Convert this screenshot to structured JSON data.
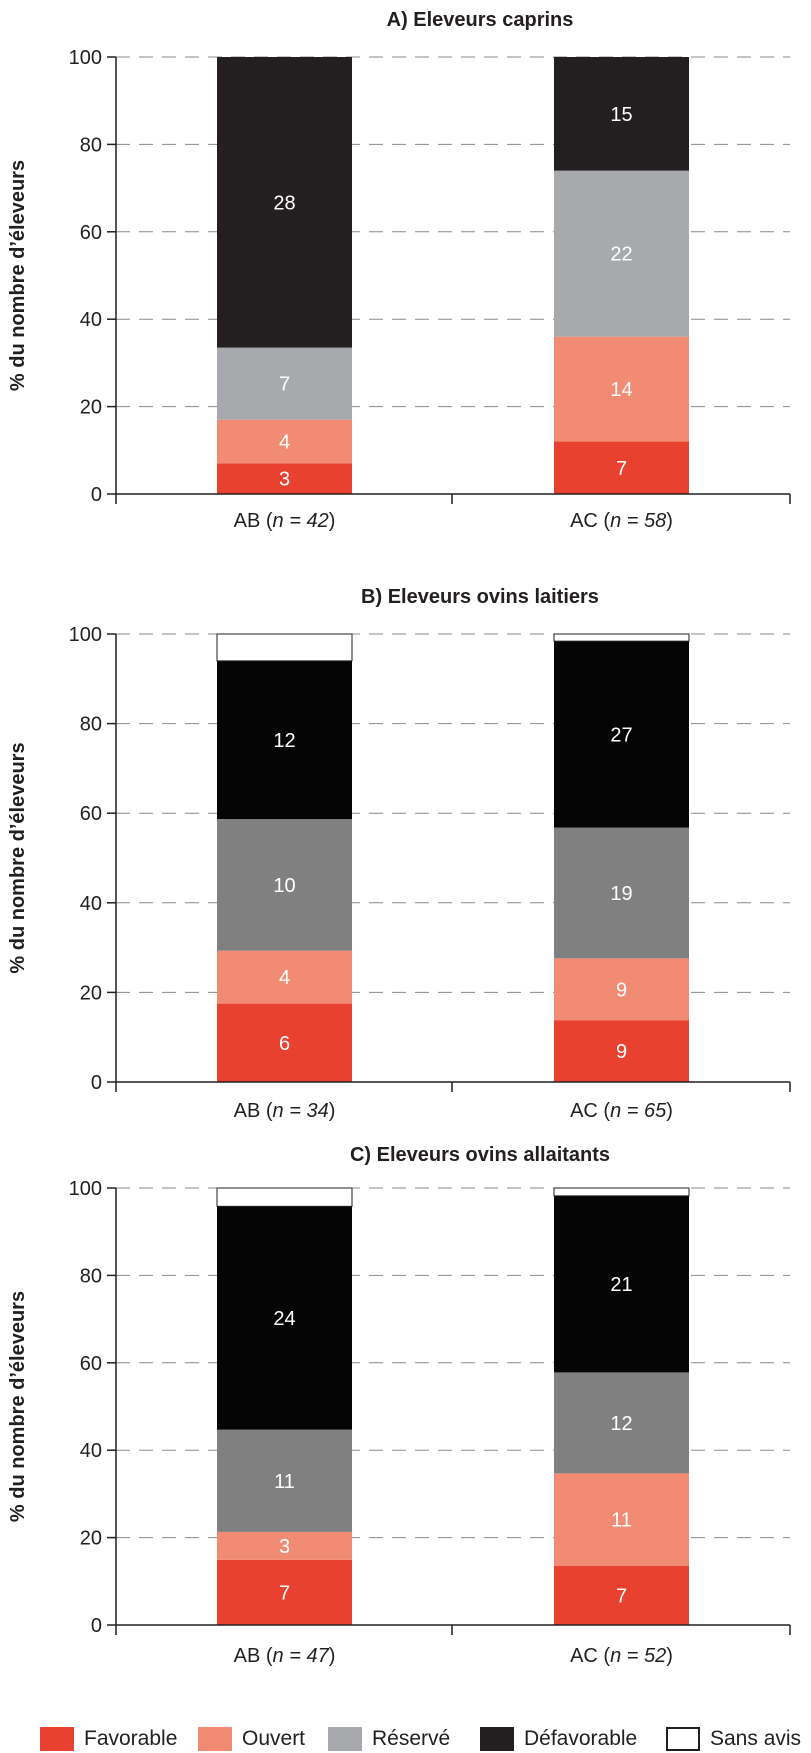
{
  "legend": [
    {
      "label": "Favorable",
      "color": "#e8412f"
    },
    {
      "label": "Ouvert",
      "color": "#f28b74"
    },
    {
      "label": "Réservé",
      "color": "#a7a9ac"
    },
    {
      "label": "Défavorable",
      "color": "#231f20"
    },
    {
      "label": "Sans avis",
      "color": "#ffffff"
    }
  ],
  "chart_data": [
    {
      "type": "bar",
      "stacked": true,
      "title": "A) Eleveurs caprins",
      "ylabel": "% du nombre d’éleveurs",
      "ylim": [
        0,
        100
      ],
      "yticks": [
        "0",
        "20",
        "40",
        "60",
        "80",
        "100"
      ],
      "grid": "horizontal-dashed",
      "categories": [
        {
          "group": "AB",
          "n": "42"
        },
        {
          "group": "AC",
          "n": "58"
        }
      ],
      "series": [
        {
          "name": "Favorable",
          "color": "#e8412f",
          "percent": [
            7,
            12
          ],
          "counts": [
            "3",
            "7"
          ]
        },
        {
          "name": "Ouvert",
          "color": "#f28b74",
          "percent": [
            10,
            24
          ],
          "counts": [
            "4",
            "14"
          ]
        },
        {
          "name": "Réservé",
          "color": "#a7a9ac",
          "percent": [
            16.5,
            38
          ],
          "counts": [
            "7",
            "22"
          ]
        },
        {
          "name": "Défavorable",
          "color": "#231f20",
          "percent": [
            66.5,
            26
          ],
          "counts": [
            "28",
            "15"
          ]
        },
        {
          "name": "Sans avis",
          "color": "#ffffff",
          "percent": [
            0,
            0
          ],
          "counts": [
            "",
            ""
          ]
        }
      ]
    },
    {
      "type": "bar",
      "stacked": true,
      "title": "B) Eleveurs ovins laitiers",
      "ylabel": "% du nombre d’éleveurs",
      "ylim": [
        0,
        100
      ],
      "yticks": [
        "0",
        "20",
        "40",
        "60",
        "80",
        "100"
      ],
      "grid": "horizontal-dashed",
      "categories": [
        {
          "group": "AB",
          "n": "34"
        },
        {
          "group": "AC",
          "n": "65"
        }
      ],
      "series": [
        {
          "name": "Favorable",
          "color": "#e8412f",
          "percent": [
            17.5,
            13.8
          ],
          "counts": [
            "6",
            "9"
          ]
        },
        {
          "name": "Ouvert",
          "color": "#f28b74",
          "percent": [
            11.8,
            13.8
          ],
          "counts": [
            "4",
            "9"
          ]
        },
        {
          "name": "Réservé",
          "color": "#808080",
          "percent": [
            29.4,
            29.2
          ],
          "counts": [
            "10",
            "19"
          ]
        },
        {
          "name": "Défavorable",
          "color": "#050505",
          "percent": [
            35.3,
            41.6
          ],
          "counts": [
            "12",
            "27"
          ]
        },
        {
          "name": "Sans avis",
          "color": "#ffffff",
          "percent": [
            6,
            1.6
          ],
          "counts": [
            "",
            ""
          ]
        }
      ]
    },
    {
      "type": "bar",
      "stacked": true,
      "title": "C) Eleveurs  ovins allaitants",
      "ylabel": "% du nombre d’éleveurs",
      "ylim": [
        0,
        100
      ],
      "yticks": [
        "0",
        "20",
        "40",
        "60",
        "80",
        "100"
      ],
      "grid": "horizontal-dashed",
      "categories": [
        {
          "group": "AB",
          "n": "47"
        },
        {
          "group": "AC",
          "n": "52"
        }
      ],
      "series": [
        {
          "name": "Favorable",
          "color": "#e8412f",
          "percent": [
            14.9,
            13.5
          ],
          "counts": [
            "7",
            "7"
          ]
        },
        {
          "name": "Ouvert",
          "color": "#f28b74",
          "percent": [
            6.4,
            21.2
          ],
          "counts": [
            "3",
            "11"
          ]
        },
        {
          "name": "Réservé",
          "color": "#808080",
          "percent": [
            23.4,
            23.1
          ],
          "counts": [
            "11",
            "12"
          ]
        },
        {
          "name": "Défavorable",
          "color": "#050505",
          "percent": [
            51.1,
            40.4
          ],
          "counts": [
            "24",
            "21"
          ]
        },
        {
          "name": "Sans avis",
          "color": "#ffffff",
          "percent": [
            4.2,
            1.8
          ],
          "counts": [
            "",
            ""
          ]
        }
      ]
    }
  ]
}
